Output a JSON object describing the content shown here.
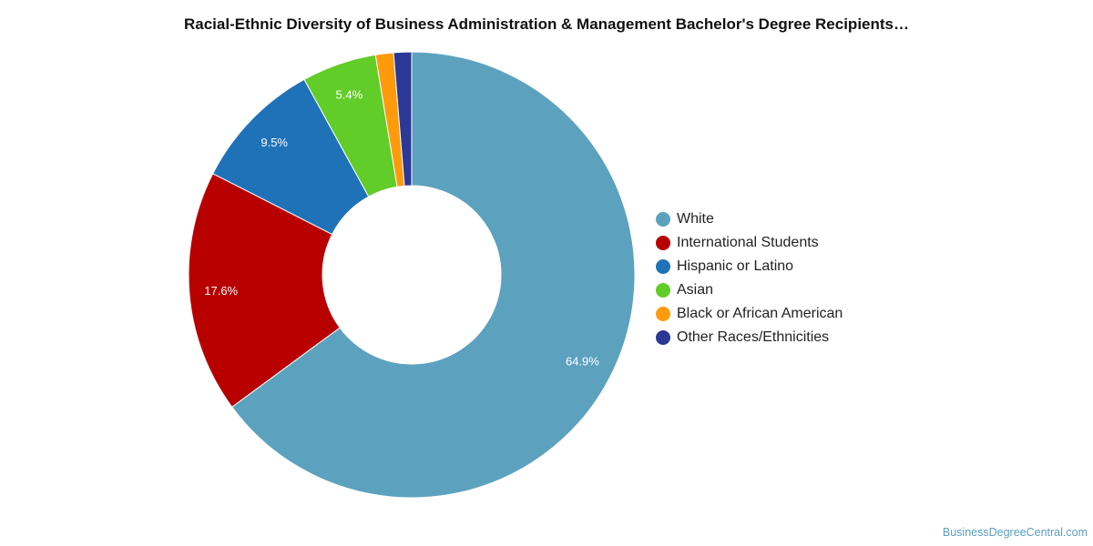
{
  "chart_data": {
    "type": "pie",
    "title": "Racial-Ethnic Diversity of Business Administration & Management Bachelor's Degree Recipients…",
    "categories": [
      "White",
      "International Students",
      "Hispanic or Latino",
      "Asian",
      "Black or African American",
      "Other Races/Ethnicities"
    ],
    "values": [
      64.9,
      17.6,
      9.5,
      5.4,
      1.3,
      1.3
    ],
    "value_unit": "%",
    "data_labels": [
      "64.9%",
      "17.6%",
      "9.5%",
      "5.4%",
      "",
      ""
    ],
    "colors": [
      "#5ca2bf",
      "#b80000",
      "#1f72b8",
      "#62cc29",
      "#ff9a0c",
      "#2b3896"
    ],
    "donut": true,
    "legend": "right"
  },
  "credit": "BusinessDegreeCentral.com"
}
